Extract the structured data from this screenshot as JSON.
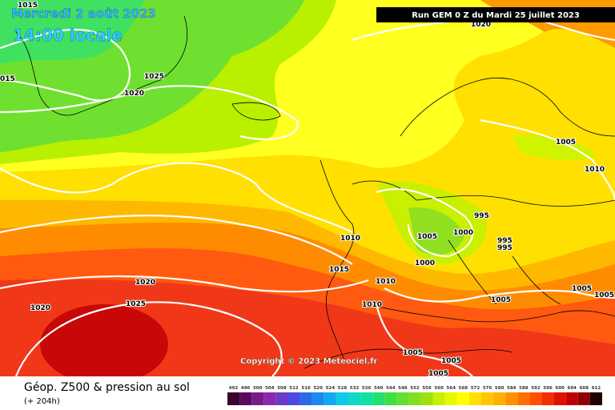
{
  "header": {
    "date": "Mercredi 2 août 2023",
    "time": "14:00 locale",
    "run": "Run GEM 0 Z du Mardi 25 juillet 2023"
  },
  "map": {
    "copyright": "Copyright © 2023 Meteociel.fr",
    "pressure_labels": [
      "1015",
      "015",
      "1020",
      "1025",
      "1020",
      "1005",
      "1010",
      "995",
      "1005",
      "1000",
      "995",
      "995",
      "1010",
      "1000",
      "1015",
      "1010",
      "1020",
      "1025",
      "1020",
      "1010",
      "1005",
      "1005",
      "1005",
      "1005",
      "1005",
      "1005"
    ]
  },
  "footer": {
    "title": "Géop. Z500 & pression au sol",
    "lead": "(+ 204h)"
  },
  "legend": {
    "scale": [
      492,
      496,
      500,
      504,
      508,
      512,
      516,
      520,
      524,
      528,
      532,
      536,
      540,
      544,
      548,
      552,
      556,
      560,
      564,
      568,
      572,
      576,
      580,
      584,
      588,
      592,
      596,
      600,
      604,
      608,
      612
    ],
    "colors": [
      "#3a0030",
      "#5a0a5a",
      "#7a1a8a",
      "#8a2aaa",
      "#6a3ac8",
      "#4a4ae0",
      "#2a6ae8",
      "#1a8af0",
      "#10aaf0",
      "#10c8e8",
      "#10d8c8",
      "#10e0a0",
      "#20e070",
      "#40e040",
      "#60e030",
      "#80e020",
      "#a0e010",
      "#c8f000",
      "#e8f800",
      "#ffff00",
      "#ffe000",
      "#ffc800",
      "#ffb000",
      "#ff9000",
      "#ff7000",
      "#ff5000",
      "#f03000",
      "#e01000",
      "#c00000",
      "#900000",
      "#200000"
    ]
  }
}
